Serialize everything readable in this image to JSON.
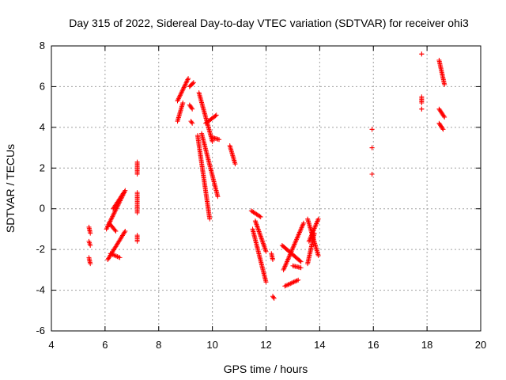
{
  "chart_data": {
    "type": "scatter",
    "title": "Day 315 of 2022, Sidereal Day-to-day VTEC variation (SDTVAR) for receiver ohi3",
    "xlabel": "GPS time / hours",
    "ylabel": "SDTVAR / TECUs",
    "xlim": [
      4,
      20
    ],
    "ylim": [
      -6,
      8
    ],
    "xticks": [
      4,
      6,
      8,
      10,
      12,
      14,
      16,
      18,
      20
    ],
    "yticks": [
      -6,
      -4,
      -2,
      0,
      2,
      4,
      6,
      8
    ],
    "xtick_labels": [
      "4",
      "6",
      "8",
      "10",
      "12",
      "14",
      "16",
      "18",
      "20"
    ],
    "ytick_labels": [
      "-6",
      "-4",
      "-2",
      "0",
      "2",
      "4",
      "6",
      "8"
    ],
    "grid": true,
    "marker": "+",
    "marker_color": "#ff0000",
    "tracks": [
      {
        "x0": 5.4,
        "x1": 5.45,
        "y0": -0.9,
        "y1": -1.2
      },
      {
        "x0": 5.4,
        "x1": 5.45,
        "y0": -1.6,
        "y1": -1.8
      },
      {
        "x0": 5.4,
        "x1": 5.45,
        "y0": -2.4,
        "y1": -2.7
      },
      {
        "x0": 6.05,
        "x1": 6.75,
        "y0": -1.0,
        "y1": 0.9
      },
      {
        "x0": 6.1,
        "x1": 6.75,
        "y0": -2.5,
        "y1": -1.1
      },
      {
        "x0": 6.3,
        "x1": 6.7,
        "y0": 0.0,
        "y1": 0.8
      },
      {
        "x0": 6.15,
        "x1": 6.4,
        "y0": -0.7,
        "y1": -1.1
      },
      {
        "x0": 6.2,
        "x1": 6.55,
        "y0": -2.2,
        "y1": -2.4
      },
      {
        "x0": 7.2,
        "x1": 7.2,
        "y0": 2.3,
        "y1": 1.7
      },
      {
        "x0": 7.2,
        "x1": 7.2,
        "y0": 0.8,
        "y1": -0.2
      },
      {
        "x0": 7.2,
        "x1": 7.2,
        "y0": -1.3,
        "y1": -1.6
      },
      {
        "x0": 8.7,
        "x1": 9.1,
        "y0": 5.3,
        "y1": 6.4
      },
      {
        "x0": 8.7,
        "x1": 8.9,
        "y0": 4.3,
        "y1": 5.2
      },
      {
        "x0": 9.15,
        "x1": 9.25,
        "y0": 5.1,
        "y1": 4.9
      },
      {
        "x0": 9.15,
        "x1": 9.3,
        "y0": 6.0,
        "y1": 6.2
      },
      {
        "x0": 9.2,
        "x1": 9.25,
        "y0": 4.3,
        "y1": 4.2
      },
      {
        "x0": 9.5,
        "x1": 10.0,
        "y0": 5.7,
        "y1": 3.3
      },
      {
        "x0": 9.75,
        "x1": 10.15,
        "y0": 4.2,
        "y1": 4.6
      },
      {
        "x0": 10.0,
        "x1": 10.25,
        "y0": 3.5,
        "y1": 3.4
      },
      {
        "x0": 9.45,
        "x1": 9.9,
        "y0": 3.6,
        "y1": -0.5
      },
      {
        "x0": 9.6,
        "x1": 10.2,
        "y0": 3.7,
        "y1": 0.6
      },
      {
        "x0": 10.65,
        "x1": 10.85,
        "y0": 3.1,
        "y1": 2.2
      },
      {
        "x0": 11.45,
        "x1": 11.8,
        "y0": -0.1,
        "y1": -0.4
      },
      {
        "x0": 11.6,
        "x1": 12.0,
        "y0": -0.6,
        "y1": -2.1
      },
      {
        "x0": 11.5,
        "x1": 12.0,
        "y0": -1.0,
        "y1": -3.6
      },
      {
        "x0": 12.2,
        "x1": 12.25,
        "y0": -2.2,
        "y1": -2.5
      },
      {
        "x0": 12.25,
        "x1": 12.3,
        "y0": -4.3,
        "y1": -4.4
      },
      {
        "x0": 12.65,
        "x1": 13.4,
        "y0": -3.0,
        "y1": -0.7
      },
      {
        "x0": 12.6,
        "x1": 13.3,
        "y0": -1.8,
        "y1": -2.6
      },
      {
        "x0": 12.7,
        "x1": 13.2,
        "y0": -3.8,
        "y1": -3.5
      },
      {
        "x0": 13.0,
        "x1": 13.3,
        "y0": -2.8,
        "y1": -2.9
      },
      {
        "x0": 13.55,
        "x1": 13.95,
        "y0": -0.5,
        "y1": -2.3
      },
      {
        "x0": 13.6,
        "x1": 13.95,
        "y0": -1.6,
        "y1": -0.5
      },
      {
        "x0": 13.55,
        "x1": 13.8,
        "y0": -2.7,
        "y1": -1.2
      },
      {
        "x0": 15.95,
        "x1": 15.95,
        "y0": 3.9,
        "y1": 3.9
      },
      {
        "x0": 15.95,
        "x1": 15.95,
        "y0": 3.0,
        "y1": 3.0
      },
      {
        "x0": 15.95,
        "x1": 15.95,
        "y0": 1.7,
        "y1": 1.7
      },
      {
        "x0": 17.8,
        "x1": 17.8,
        "y0": 7.6,
        "y1": 7.6
      },
      {
        "x0": 17.8,
        "x1": 17.8,
        "y0": 5.5,
        "y1": 5.2
      },
      {
        "x0": 17.8,
        "x1": 17.8,
        "y0": 4.9,
        "y1": 4.9
      },
      {
        "x0": 18.45,
        "x1": 18.65,
        "y0": 7.3,
        "y1": 6.1
      },
      {
        "x0": 18.45,
        "x1": 18.65,
        "y0": 4.9,
        "y1": 4.5
      },
      {
        "x0": 18.45,
        "x1": 18.6,
        "y0": 4.2,
        "y1": 3.9
      }
    ]
  }
}
